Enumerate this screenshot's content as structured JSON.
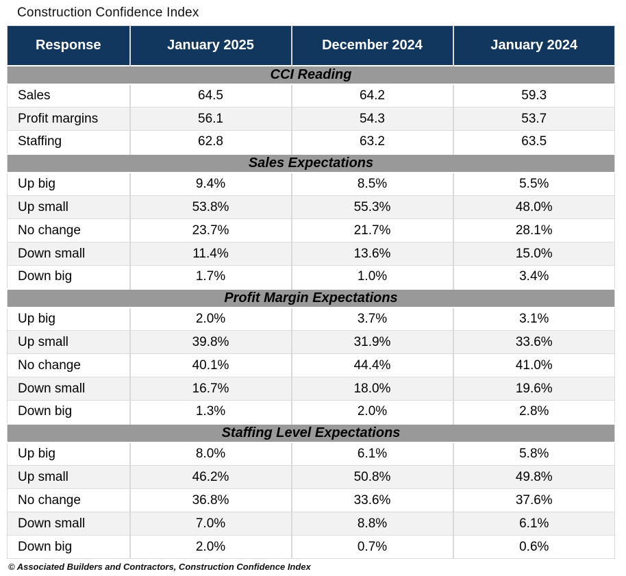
{
  "page_title": "Construction Confidence Index",
  "footer": "© Associated Builders and Contractors, Construction Confidence Index",
  "colors": {
    "header_bg": "#12375e",
    "header_text": "#ffffff",
    "band_bg": "#999999",
    "row_alt_bg": "#f2f2f2",
    "grid_border": "#d9d9d9"
  },
  "chart_data": {
    "type": "table",
    "title": "Construction Confidence Index",
    "columns": [
      "Response",
      "January 2025",
      "December 2024",
      "January 2024"
    ],
    "sections": [
      {
        "header": "CCI Reading",
        "rows": [
          [
            "Sales",
            "64.5",
            "64.2",
            "59.3"
          ],
          [
            "Profit margins",
            "56.1",
            "54.3",
            "53.7"
          ],
          [
            "Staffing",
            "62.8",
            "63.2",
            "63.5"
          ]
        ]
      },
      {
        "header": "Sales Expectations",
        "rows": [
          [
            "Up big",
            "9.4%",
            "8.5%",
            "5.5%"
          ],
          [
            "Up small",
            "53.8%",
            "55.3%",
            "48.0%"
          ],
          [
            "No change",
            "23.7%",
            "21.7%",
            "28.1%"
          ],
          [
            "Down small",
            "11.4%",
            "13.6%",
            "15.0%"
          ],
          [
            "Down big",
            "1.7%",
            "1.0%",
            "3.4%"
          ]
        ]
      },
      {
        "header": "Profit Margin Expectations",
        "rows": [
          [
            "Up big",
            "2.0%",
            "3.7%",
            "3.1%"
          ],
          [
            "Up small",
            "39.8%",
            "31.9%",
            "33.6%"
          ],
          [
            "No change",
            "40.1%",
            "44.4%",
            "41.0%"
          ],
          [
            "Down small",
            "16.7%",
            "18.0%",
            "19.6%"
          ],
          [
            "Down big",
            "1.3%",
            "2.0%",
            "2.8%"
          ]
        ]
      },
      {
        "header": "Staffing Level Expectations",
        "rows": [
          [
            "Up big",
            "8.0%",
            "6.1%",
            "5.8%"
          ],
          [
            "Up small",
            "46.2%",
            "50.8%",
            "49.8%"
          ],
          [
            "No change",
            "36.8%",
            "33.6%",
            "37.6%"
          ],
          [
            "Down small",
            "7.0%",
            "8.8%",
            "6.1%"
          ],
          [
            "Down big",
            "2.0%",
            "0.7%",
            "0.6%"
          ]
        ]
      }
    ],
    "source_note": "© Associated Builders and Contractors, Construction Confidence Index"
  }
}
